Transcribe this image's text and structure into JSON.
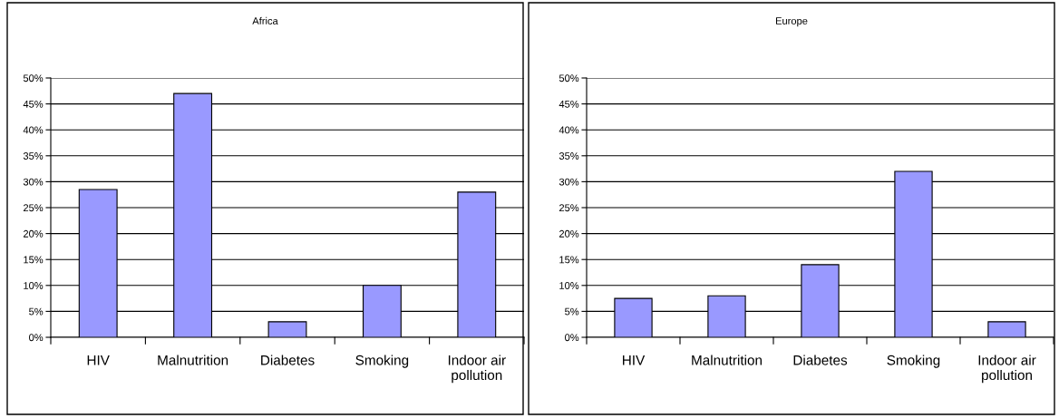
{
  "chart_data": [
    {
      "type": "bar",
      "title": "Africa",
      "categories": [
        "HIV",
        "Malnutrition",
        "Diabetes",
        "Smoking",
        "Indoor air\npollution"
      ],
      "values": [
        28.5,
        47,
        3,
        10,
        28
      ],
      "color": "#9999ff",
      "ylim": [
        0,
        50
      ],
      "yticks": [
        {
          "value": 0,
          "label": "0%"
        },
        {
          "value": 5,
          "label": "5%"
        },
        {
          "value": 10,
          "label": "10%"
        },
        {
          "value": 15,
          "label": "15%"
        },
        {
          "value": 20,
          "label": "20%"
        },
        {
          "value": 25,
          "label": "25%"
        },
        {
          "value": 30,
          "label": "30%"
        },
        {
          "value": 35,
          "label": "35%"
        },
        {
          "value": 40,
          "label": "40%"
        },
        {
          "value": 45,
          "label": "45%"
        },
        {
          "value": 50,
          "label": "50%"
        }
      ],
      "grid": "y",
      "legend": false
    },
    {
      "type": "bar",
      "title": "Europe",
      "categories": [
        "HIV",
        "Malnutrition",
        "Diabetes",
        "Smoking",
        "Indoor air\npollution"
      ],
      "values": [
        7.5,
        8,
        14,
        32,
        3
      ],
      "color": "#9999ff",
      "ylim": [
        0,
        50
      ],
      "yticks": [
        {
          "value": 0,
          "label": "0%"
        },
        {
          "value": 5,
          "label": "5%"
        },
        {
          "value": 10,
          "label": "10%"
        },
        {
          "value": 15,
          "label": "15%"
        },
        {
          "value": 20,
          "label": "20%"
        },
        {
          "value": 25,
          "label": "25%"
        },
        {
          "value": 30,
          "label": "30%"
        },
        {
          "value": 35,
          "label": "35%"
        },
        {
          "value": 40,
          "label": "40%"
        },
        {
          "value": 45,
          "label": "45%"
        },
        {
          "value": 50,
          "label": "50%"
        }
      ],
      "grid": "y",
      "legend": false
    }
  ]
}
